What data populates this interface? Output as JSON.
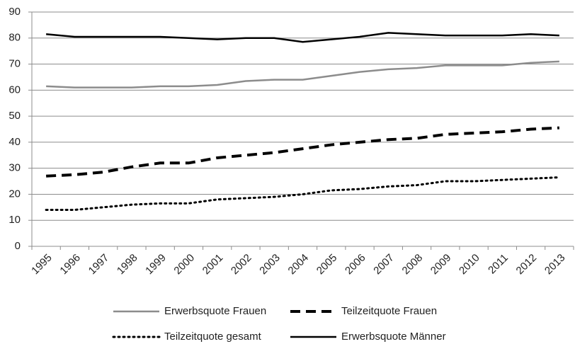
{
  "chart_data": {
    "type": "line",
    "categories": [
      "1995",
      "1996",
      "1997",
      "1998",
      "1999",
      "2000",
      "2001",
      "2002",
      "2003",
      "2004",
      "2005",
      "2006",
      "2007",
      "2008",
      "2009",
      "2010",
      "2011",
      "2012",
      "2013"
    ],
    "series": [
      {
        "name": "Erwerbsquote Frauen",
        "color": "#8c8c8c",
        "style": "solid",
        "values": [
          61.5,
          61,
          61,
          61,
          61.5,
          61.5,
          62,
          63.5,
          64,
          64,
          65.5,
          67,
          68,
          68.5,
          69.5,
          69.5,
          69.5,
          70.5,
          71
        ]
      },
      {
        "name": "Teilzeitquote Frauen",
        "color": "#000000",
        "style": "dashed",
        "values": [
          27,
          27.5,
          28.5,
          30.5,
          32,
          32,
          34,
          35,
          36,
          37.5,
          39,
          40,
          41,
          41.5,
          43,
          43.5,
          44,
          45,
          45.5
        ]
      },
      {
        "name": "Teilzeitquote gesamt",
        "color": "#000000",
        "style": "dotted",
        "values": [
          14,
          14,
          15,
          16,
          16.5,
          16.5,
          18,
          18.5,
          19,
          20,
          21.5,
          22,
          23,
          23.5,
          25,
          25,
          25.5,
          26,
          26.5
        ]
      },
      {
        "name": "Erwerbsquote Männer",
        "color": "#000000",
        "style": "solid",
        "values": [
          81.5,
          80.5,
          80.5,
          80.5,
          80.5,
          80,
          79.5,
          80,
          80,
          78.5,
          79.5,
          80.5,
          82,
          81.5,
          81,
          81,
          81,
          81.5,
          81
        ]
      }
    ],
    "ylim": [
      0,
      90
    ],
    "yticks": [
      0,
      10,
      20,
      30,
      40,
      50,
      60,
      70,
      80,
      90
    ],
    "grid": true,
    "legend": "bottom"
  }
}
